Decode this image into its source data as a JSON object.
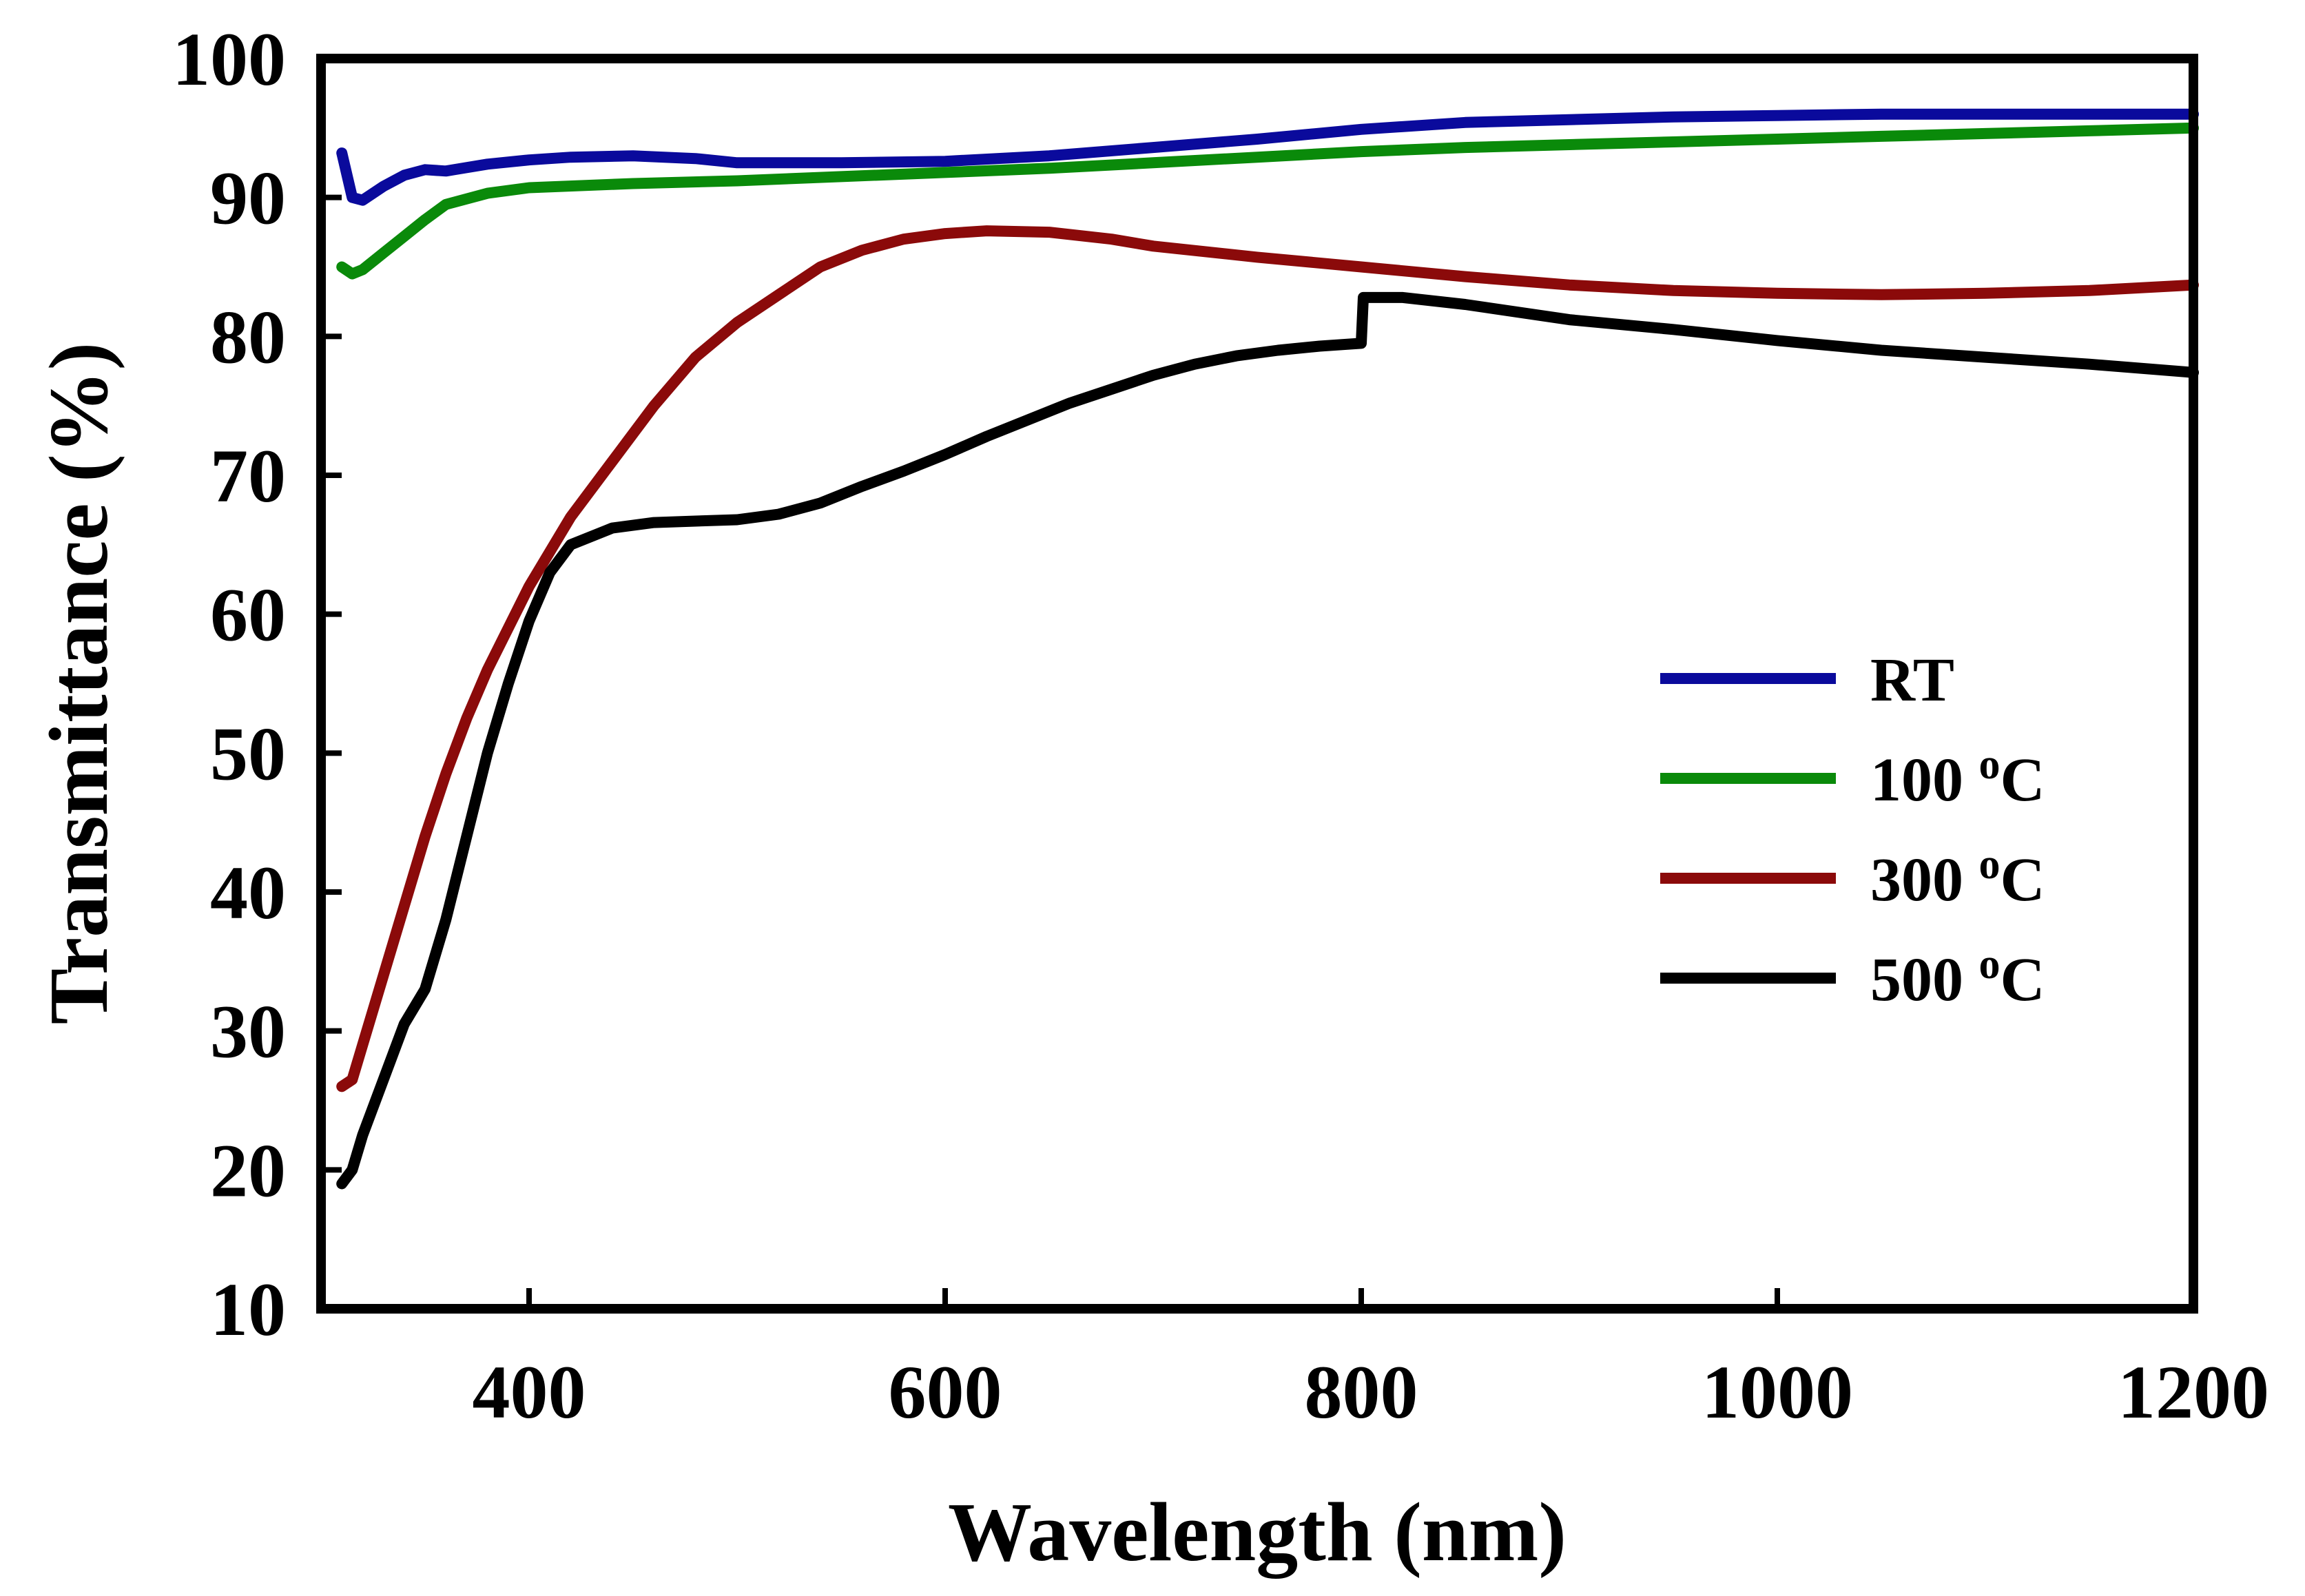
{
  "chart_data": {
    "type": "line",
    "title": "",
    "xlabel": "Wavelength (nm)",
    "ylabel": "Transmittance (%)",
    "xlim": [
      300,
      1200
    ],
    "ylim": [
      10,
      100
    ],
    "xticks": [
      400,
      600,
      800,
      1000,
      1200
    ],
    "yticks": [
      10,
      20,
      30,
      40,
      50,
      60,
      70,
      80,
      90,
      100
    ],
    "grid": false,
    "legend_position": "right-middle",
    "series": [
      {
        "name": "RT",
        "label_main": "RT",
        "label_sup": "",
        "label_unit": "",
        "color": "#0a0a9c",
        "points": [
          [
            310,
            93.2
          ],
          [
            315,
            90.0
          ],
          [
            320,
            89.8
          ],
          [
            330,
            90.8
          ],
          [
            340,
            91.6
          ],
          [
            350,
            92.0
          ],
          [
            360,
            91.9
          ],
          [
            380,
            92.4
          ],
          [
            400,
            92.7
          ],
          [
            420,
            92.9
          ],
          [
            450,
            93.0
          ],
          [
            480,
            92.8
          ],
          [
            500,
            92.5
          ],
          [
            550,
            92.5
          ],
          [
            600,
            92.6
          ],
          [
            650,
            93.0
          ],
          [
            700,
            93.6
          ],
          [
            750,
            94.2
          ],
          [
            800,
            94.9
          ],
          [
            850,
            95.4
          ],
          [
            900,
            95.6
          ],
          [
            950,
            95.8
          ],
          [
            1000,
            95.9
          ],
          [
            1050,
            96.0
          ],
          [
            1100,
            96.0
          ],
          [
            1150,
            96.0
          ],
          [
            1200,
            96.0
          ]
        ]
      },
      {
        "name": "100 °C",
        "label_main": "100 ",
        "label_sup": "o",
        "label_unit": "C",
        "color": "#0a8a0a",
        "points": [
          [
            310,
            85.0
          ],
          [
            315,
            84.5
          ],
          [
            320,
            84.8
          ],
          [
            330,
            86.0
          ],
          [
            340,
            87.2
          ],
          [
            350,
            88.4
          ],
          [
            360,
            89.5
          ],
          [
            380,
            90.3
          ],
          [
            400,
            90.7
          ],
          [
            450,
            91.0
          ],
          [
            500,
            91.2
          ],
          [
            550,
            91.5
          ],
          [
            600,
            91.8
          ],
          [
            650,
            92.1
          ],
          [
            700,
            92.5
          ],
          [
            750,
            92.9
          ],
          [
            800,
            93.3
          ],
          [
            850,
            93.6
          ],
          [
            900,
            93.8
          ],
          [
            950,
            94.0
          ],
          [
            1000,
            94.2
          ],
          [
            1050,
            94.4
          ],
          [
            1100,
            94.6
          ],
          [
            1150,
            94.8
          ],
          [
            1200,
            95.0
          ]
        ]
      },
      {
        "name": "300 °C",
        "label_main": "300 ",
        "label_sup": "o",
        "label_unit": "C",
        "color": "#8b0a0a",
        "points": [
          [
            310,
            26.0
          ],
          [
            315,
            26.5
          ],
          [
            320,
            29.0
          ],
          [
            330,
            34.0
          ],
          [
            340,
            39.0
          ],
          [
            350,
            44.0
          ],
          [
            360,
            48.5
          ],
          [
            370,
            52.5
          ],
          [
            380,
            56.0
          ],
          [
            400,
            62.0
          ],
          [
            420,
            67.0
          ],
          [
            440,
            71.0
          ],
          [
            460,
            75.0
          ],
          [
            480,
            78.5
          ],
          [
            500,
            81.0
          ],
          [
            520,
            83.0
          ],
          [
            540,
            85.0
          ],
          [
            560,
            86.2
          ],
          [
            580,
            87.0
          ],
          [
            600,
            87.4
          ],
          [
            620,
            87.6
          ],
          [
            650,
            87.5
          ],
          [
            680,
            87.0
          ],
          [
            700,
            86.5
          ],
          [
            750,
            85.7
          ],
          [
            800,
            85.0
          ],
          [
            850,
            84.3
          ],
          [
            900,
            83.7
          ],
          [
            950,
            83.3
          ],
          [
            1000,
            83.1
          ],
          [
            1050,
            83.0
          ],
          [
            1100,
            83.1
          ],
          [
            1150,
            83.3
          ],
          [
            1200,
            83.7
          ]
        ]
      },
      {
        "name": "500 °C",
        "label_main": "500 ",
        "label_sup": "o",
        "label_unit": "C",
        "color": "#000000",
        "points": [
          [
            310,
            19.0
          ],
          [
            315,
            20.0
          ],
          [
            320,
            22.5
          ],
          [
            330,
            26.5
          ],
          [
            340,
            30.5
          ],
          [
            350,
            33.0
          ],
          [
            360,
            38.0
          ],
          [
            370,
            44.0
          ],
          [
            380,
            50.0
          ],
          [
            390,
            55.0
          ],
          [
            400,
            59.5
          ],
          [
            410,
            63.0
          ],
          [
            420,
            65.0
          ],
          [
            440,
            66.2
          ],
          [
            460,
            66.6
          ],
          [
            480,
            66.7
          ],
          [
            500,
            66.8
          ],
          [
            520,
            67.2
          ],
          [
            540,
            68.0
          ],
          [
            560,
            69.2
          ],
          [
            580,
            70.3
          ],
          [
            600,
            71.5
          ],
          [
            620,
            72.8
          ],
          [
            640,
            74.0
          ],
          [
            660,
            75.2
          ],
          [
            680,
            76.2
          ],
          [
            700,
            77.2
          ],
          [
            720,
            78.0
          ],
          [
            740,
            78.6
          ],
          [
            760,
            79.0
          ],
          [
            780,
            79.3
          ],
          [
            800,
            79.5
          ],
          [
            801,
            82.8
          ],
          [
            820,
            82.8
          ],
          [
            850,
            82.3
          ],
          [
            900,
            81.2
          ],
          [
            950,
            80.5
          ],
          [
            1000,
            79.7
          ],
          [
            1050,
            79.0
          ],
          [
            1100,
            78.5
          ],
          [
            1150,
            78.0
          ],
          [
            1200,
            77.4
          ]
        ]
      }
    ]
  }
}
